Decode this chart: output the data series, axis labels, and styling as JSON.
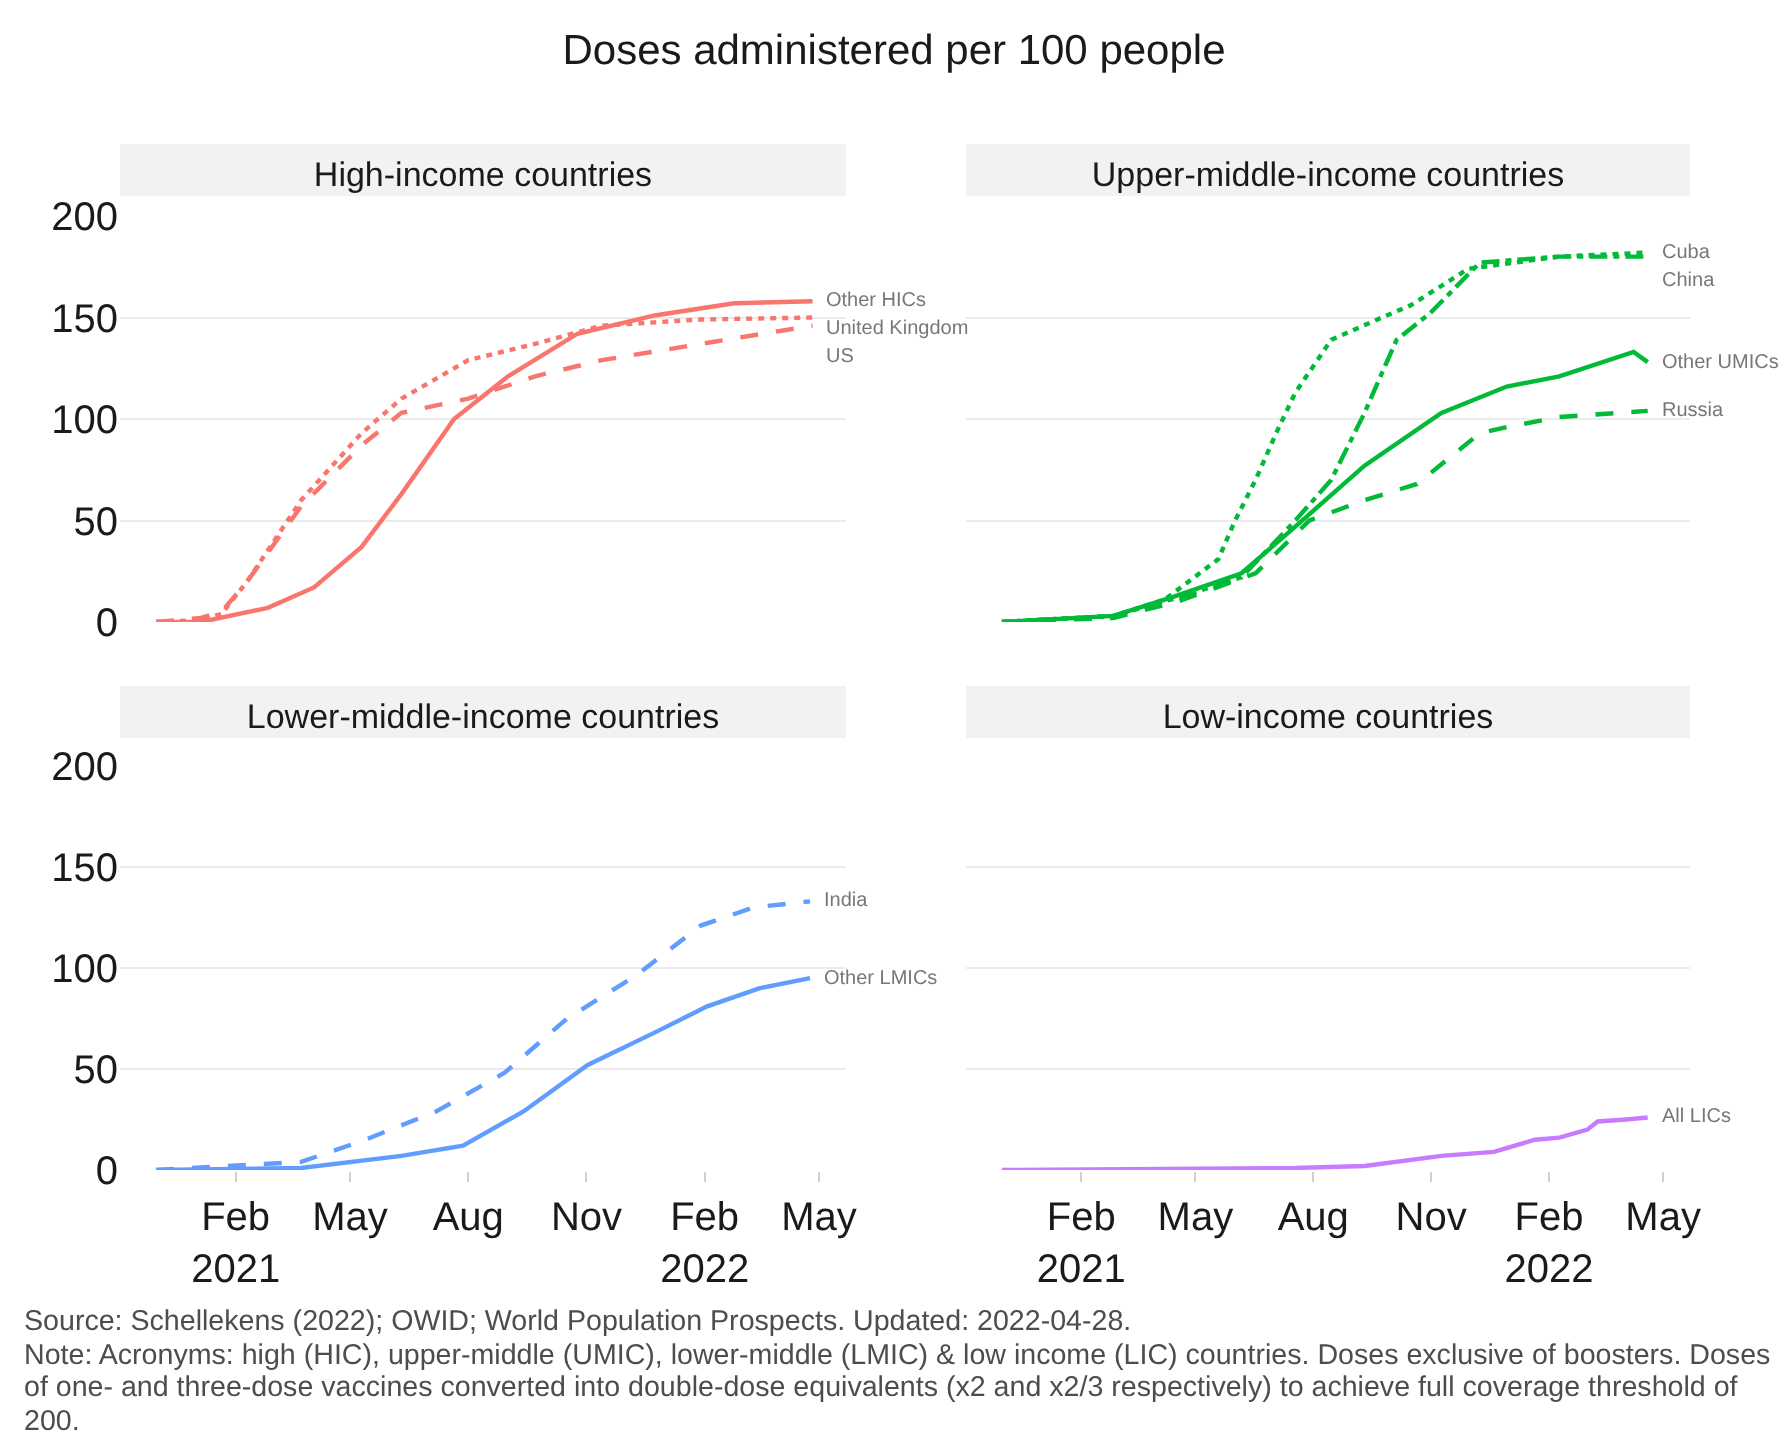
{
  "chart_data": [
    {
      "type": "line",
      "title": "High-income countries",
      "annotations": [
        "Doses administered per 100 people"
      ],
      "xlim": [
        "2020-11-03",
        "2022-05-22"
      ],
      "ylim": [
        0,
        200
      ],
      "yticks": [
        0,
        50,
        100,
        150,
        200
      ],
      "grid": "y",
      "legend": false,
      "tick_labels": "y",
      "series": [
        {
          "name": "Other HICs",
          "color": "#f8766d",
          "line_style": "solid",
          "x": [
            "2020-12-01",
            "2021-01-05",
            "2021-02-26",
            "2021-04-03",
            "2021-05-10",
            "2021-06-10",
            "2021-07-21",
            "2021-09-01",
            "2021-10-25",
            "2021-12-24",
            "2022-02-24",
            "2022-04-26"
          ],
          "values": [
            0,
            0,
            7,
            17,
            37,
            63,
            100,
            121,
            142,
            151,
            157,
            158
          ]
        },
        {
          "name": "United Kingdom",
          "color": "#f8766d",
          "line_style": "dotted",
          "x": [
            "2020-12-01",
            "2021-01-05",
            "2021-01-21",
            "2021-02-10",
            "2021-03-24",
            "2021-05-10",
            "2021-06-10",
            "2021-08-01",
            "2021-09-22",
            "2021-11-13",
            "2022-01-29",
            "2022-04-26"
          ],
          "values": [
            0,
            1,
            4,
            20,
            60,
            93,
            110,
            129,
            137,
            146,
            149,
            150
          ]
        },
        {
          "name": "US",
          "color": "#f8766d",
          "line_style": "dashed",
          "x": [
            "2020-12-01",
            "2021-01-05",
            "2021-01-21",
            "2021-02-10",
            "2021-03-24",
            "2021-05-10",
            "2021-06-10",
            "2021-08-01",
            "2021-09-22",
            "2021-11-13",
            "2022-01-29",
            "2022-04-26"
          ],
          "values": [
            0,
            2,
            5,
            20,
            57,
            87,
            103,
            110,
            121,
            129,
            137,
            146
          ]
        }
      ]
    },
    {
      "type": "line",
      "title": "Upper-middle-income countries",
      "xlim": [
        "2020-11-03",
        "2022-05-22"
      ],
      "ylim": [
        0,
        200
      ],
      "yticks": [
        0,
        50,
        100,
        150,
        200
      ],
      "grid": "y",
      "legend": false,
      "tick_labels": false,
      "series": [
        {
          "name": "Cuba",
          "color": "#00ba38",
          "line_style": "dotted",
          "x": [
            "2020-12-01",
            "2021-02-26",
            "2021-04-07",
            "2021-05-19",
            "2021-06-01",
            "2021-06-17",
            "2021-07-03",
            "2021-07-18",
            "2021-08-15",
            "2021-09-20",
            "2021-10-16",
            "2021-11-30",
            "2022-02-09",
            "2022-04-19"
          ],
          "values": [
            0,
            3,
            11,
            31,
            50,
            70,
            93,
            113,
            139,
            149,
            156,
            174,
            180,
            182
          ]
        },
        {
          "name": "China",
          "color": "#00ba38",
          "line_style": "dashdot",
          "x": [
            "2020-12-01",
            "2021-02-26",
            "2021-04-17",
            "2021-06-06",
            "2021-07-18",
            "2021-08-15",
            "2021-09-10",
            "2021-10-05",
            "2021-10-31",
            "2021-12-09",
            "2022-02-09",
            "2022-04-19"
          ],
          "values": [
            0,
            3,
            12,
            22,
            50,
            70,
            103,
            139,
            152,
            177,
            180,
            180
          ]
        },
        {
          "name": "Other UMICs",
          "color": "#00ba38",
          "line_style": "solid",
          "x": [
            "2020-12-01",
            "2021-02-26",
            "2021-04-12",
            "2021-06-06",
            "2021-07-18",
            "2021-09-10",
            "2021-11-09",
            "2021-12-30",
            "2022-02-09",
            "2022-04-08",
            "2022-04-19"
          ],
          "values": [
            0,
            3,
            12,
            24,
            47,
            77,
            103,
            116,
            121,
            133,
            128
          ]
        },
        {
          "name": "Russia",
          "color": "#00ba38",
          "line_style": "dashed",
          "x": [
            "2020-12-01",
            "2021-02-26",
            "2021-04-17",
            "2021-06-17",
            "2021-07-29",
            "2021-09-10",
            "2021-10-21",
            "2021-12-09",
            "2021-12-30",
            "2022-02-09",
            "2022-04-19"
          ],
          "values": [
            0,
            2,
            10,
            24,
            50,
            60,
            68,
            93,
            96,
            101,
            104
          ]
        }
      ]
    },
    {
      "type": "line",
      "title": "Lower-middle-income countries",
      "xlim": [
        "2020-11-03",
        "2022-05-22"
      ],
      "xticks": [
        {
          "value": "2021-02-01",
          "label": "Feb\n2021"
        },
        {
          "value": "2021-05-01",
          "label": "May"
        },
        {
          "value": "2021-08-01",
          "label": "Aug"
        },
        {
          "value": "2021-11-01",
          "label": "Nov"
        },
        {
          "value": "2022-02-01",
          "label": "Feb\n2022"
        },
        {
          "value": "2022-05-01",
          "label": "May"
        }
      ],
      "ylim": [
        0,
        200
      ],
      "yticks": [
        0,
        50,
        100,
        150,
        200
      ],
      "grid": "y",
      "legend": false,
      "series": [
        {
          "name": "India",
          "color": "#619cff",
          "line_style": "dashed",
          "x": [
            "2020-12-01",
            "2021-03-24",
            "2021-05-13",
            "2021-07-07",
            "2021-08-29",
            "2021-10-17",
            "2021-12-09",
            "2022-01-29",
            "2022-03-11",
            "2022-04-24"
          ],
          "values": [
            0,
            4,
            15,
            29,
            48,
            75,
            96,
            121,
            130,
            133
          ]
        },
        {
          "name": "Other LMICs",
          "color": "#619cff",
          "line_style": "solid",
          "x": [
            "2020-12-01",
            "2021-03-24",
            "2021-06-10",
            "2021-07-28",
            "2021-09-13",
            "2021-11-02",
            "2021-12-24",
            "2022-02-03",
            "2022-03-16",
            "2022-04-24"
          ],
          "values": [
            0,
            1,
            7,
            12,
            29,
            52,
            68,
            81,
            90,
            95
          ]
        }
      ]
    },
    {
      "type": "line",
      "title": "Low-income countries",
      "annotations": [
        "Source: Schellekens (2022); OWID; World Population Prospects. Updated: 2022-04-28.",
        "Note: Acronyms: high (HIC), upper-middle (UMIC), lower-middle (LMIC) & low income (LIC) countries. Doses exclusive of boosters. Doses of one- and three-dose vaccines converted into double-dose equivalents (x2 and x2/3 respectively) to achieve full coverage threshold of 200."
      ],
      "xlim": [
        "2020-11-03",
        "2022-05-22"
      ],
      "xticks": [
        {
          "value": "2021-02-01",
          "label": "Feb\n2021"
        },
        {
          "value": "2021-05-01",
          "label": "May"
        },
        {
          "value": "2021-08-01",
          "label": "Aug"
        },
        {
          "value": "2021-11-01",
          "label": "Nov"
        },
        {
          "value": "2022-02-01",
          "label": "Feb\n2022"
        },
        {
          "value": "2022-05-01",
          "label": "May"
        }
      ],
      "ylim": [
        0,
        200
      ],
      "yticks": [
        0,
        50,
        100,
        150,
        200
      ],
      "grid": "y",
      "legend": false,
      "tick_labels": "x",
      "series": [
        {
          "name": "All LICs",
          "color": "#c77cff",
          "line_style": "solid",
          "x": [
            "2020-12-01",
            "2021-07-18",
            "2021-09-10",
            "2021-11-09",
            "2021-12-20",
            "2022-01-21",
            "2022-02-09",
            "2022-03-03",
            "2022-03-11",
            "2022-04-02",
            "2022-04-19"
          ],
          "values": [
            0,
            1,
            2,
            7,
            9,
            15,
            16,
            20,
            24,
            25,
            26
          ]
        }
      ]
    }
  ]
}
